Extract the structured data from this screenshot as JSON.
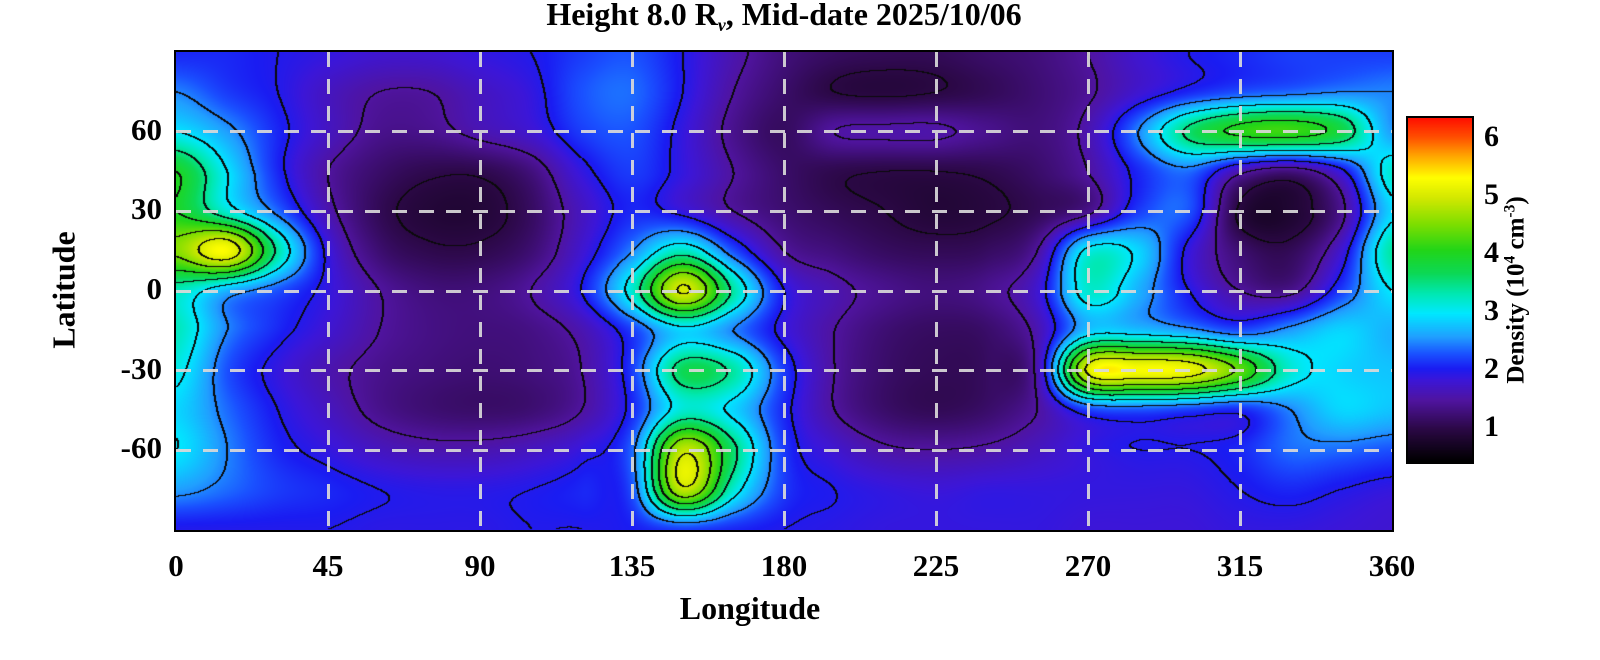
{
  "title": {
    "prefix": "Height 8.0 R",
    "subscript": "v",
    "suffix": ", Mid-date 2025/10/06"
  },
  "axes": {
    "x_label": "Longitude",
    "y_label": "Latitude",
    "x_ticks": [
      "0",
      "45",
      "90",
      "135",
      "180",
      "225",
      "270",
      "315",
      "360"
    ],
    "y_ticks": [
      "60",
      "30",
      "0",
      "-30",
      "-60"
    ]
  },
  "colorbar": {
    "ticks": [
      "6",
      "5",
      "4",
      "3",
      "2",
      "1"
    ],
    "tick_values": [
      6,
      5,
      4,
      3,
      2,
      1
    ],
    "title": {
      "prefix": "Density (10",
      "sup1": "4",
      "mid": " cm",
      "sup2": "-3",
      "suffix": ")"
    }
  },
  "chart_data": {
    "type": "heatmap",
    "title": "Height 8.0 Rv, Mid-date 2025/10/06",
    "xlabel": "Longitude",
    "ylabel": "Latitude",
    "xlim": [
      0,
      360
    ],
    "ylim": [
      -90,
      90
    ],
    "x_ticks": [
      0,
      45,
      90,
      135,
      180,
      225,
      270,
      315,
      360
    ],
    "y_ticks": [
      60,
      30,
      0,
      -30,
      -60
    ],
    "colorbar_label": "Density (10^4 cm^-3)",
    "colorbar_ticks": [
      1,
      2,
      3,
      4,
      5,
      6
    ],
    "value_range": [
      0.44,
      6.38
    ],
    "grid_lon": [
      0,
      15,
      30,
      45,
      60,
      75,
      90,
      105,
      120,
      135,
      150,
      165,
      180,
      195,
      210,
      225,
      240,
      255,
      270,
      285,
      300,
      315,
      330,
      345,
      360
    ],
    "grid_lat": [
      90,
      75,
      60,
      45,
      30,
      15,
      0,
      -15,
      -30,
      -45,
      -60,
      -75,
      -90
    ],
    "values": [
      [
        2.1,
        2.1,
        2.0,
        1.9,
        1.8,
        1.8,
        1.9,
        2.0,
        2.2,
        2.3,
        2.0,
        1.6,
        1.3,
        1.15,
        1.1,
        1.1,
        1.2,
        1.3,
        1.5,
        1.8,
        2.0,
        2.1,
        2.2,
        2.2,
        2.2
      ],
      [
        2.5,
        2.2,
        2.0,
        1.7,
        1.5,
        1.5,
        1.7,
        1.9,
        2.3,
        2.4,
        2.0,
        1.5,
        1.2,
        1.0,
        0.95,
        1.0,
        1.1,
        1.25,
        1.45,
        1.8,
        2.1,
        2.3,
        2.4,
        2.5,
        2.5
      ],
      [
        3.0,
        2.6,
        2.1,
        1.7,
        1.4,
        1.4,
        1.6,
        1.8,
        2.2,
        2.3,
        1.9,
        1.4,
        1.15,
        1.5,
        1.55,
        1.55,
        1.4,
        1.3,
        1.6,
        2.5,
        3.6,
        4.1,
        4.2,
        3.8,
        2.6
      ],
      [
        4.0,
        3.0,
        2.1,
        1.5,
        1.2,
        1.05,
        1.05,
        1.3,
        1.9,
        2.2,
        1.9,
        1.5,
        1.2,
        1.05,
        1.0,
        1.0,
        1.05,
        1.2,
        1.5,
        2.1,
        2.4,
        1.6,
        1.3,
        1.9,
        3.2
      ],
      [
        4.0,
        3.2,
        2.4,
        1.6,
        1.1,
        0.9,
        0.9,
        1.15,
        1.7,
        2.1,
        1.9,
        1.5,
        1.25,
        1.1,
        1.0,
        0.9,
        0.95,
        1.1,
        1.4,
        2.2,
        2.3,
        0.95,
        0.85,
        1.4,
        2.9
      ],
      [
        4.6,
        5.3,
        3.4,
        1.9,
        1.25,
        1.05,
        1.05,
        1.25,
        1.8,
        2.5,
        3.3,
        2.3,
        1.5,
        1.3,
        1.15,
        1.1,
        1.15,
        1.5,
        3.1,
        2.9,
        1.9,
        1.25,
        1.1,
        1.8,
        3.4
      ],
      [
        3.3,
        2.7,
        2.3,
        1.9,
        1.5,
        1.3,
        1.3,
        1.5,
        2.0,
        3.2,
        5.05,
        3.4,
        2.0,
        1.6,
        1.4,
        1.3,
        1.4,
        1.8,
        3.2,
        2.7,
        2.0,
        1.5,
        1.4,
        2.2,
        3.0
      ],
      [
        3.3,
        2.5,
        2.1,
        1.8,
        1.5,
        1.35,
        1.3,
        1.35,
        1.6,
        2.2,
        2.9,
        2.5,
        1.9,
        1.5,
        1.25,
        1.15,
        1.2,
        1.6,
        2.8,
        2.8,
        2.6,
        2.3,
        2.6,
        2.9,
        2.7
      ],
      [
        3.1,
        2.3,
        1.9,
        1.6,
        1.4,
        1.3,
        1.25,
        1.3,
        1.5,
        2.2,
        3.7,
        3.4,
        2.2,
        1.5,
        1.2,
        1.1,
        1.15,
        1.6,
        5.1,
        5.3,
        5.2,
        4.4,
        3.2,
        2.9,
        2.8
      ],
      [
        2.9,
        2.4,
        2.0,
        1.7,
        1.4,
        1.25,
        1.2,
        1.25,
        1.5,
        2.1,
        3.2,
        2.9,
        2.1,
        1.5,
        1.2,
        1.1,
        1.2,
        1.5,
        2.2,
        2.3,
        2.2,
        2.1,
        2.5,
        2.9,
        2.8
      ],
      [
        3.0,
        2.5,
        2.1,
        1.9,
        1.7,
        1.6,
        1.6,
        1.7,
        1.9,
        2.4,
        4.9,
        3.6,
        2.2,
        1.8,
        1.55,
        1.5,
        1.55,
        1.7,
        1.9,
        2.0,
        2.0,
        2.1,
        2.4,
        2.4,
        2.3
      ],
      [
        2.6,
        2.4,
        2.2,
        2.1,
        2.0,
        1.95,
        1.95,
        2.0,
        2.1,
        2.3,
        4.9,
        3.2,
        2.2,
        2.0,
        1.9,
        1.85,
        1.9,
        1.9,
        1.9,
        1.9,
        1.9,
        2.0,
        2.1,
        2.0,
        1.9
      ],
      [
        2.0,
        2.0,
        2.0,
        2.0,
        1.95,
        1.95,
        1.95,
        2.0,
        2.0,
        2.05,
        2.2,
        2.1,
        2.0,
        1.95,
        1.9,
        1.9,
        1.9,
        1.9,
        1.85,
        1.85,
        1.85,
        1.9,
        1.9,
        1.85,
        1.8
      ]
    ],
    "contour_levels": [
      1,
      1.5,
      2,
      2.5,
      3,
      3.5,
      4,
      4.5,
      5
    ],
    "contour_color": "#000000",
    "gridlines": {
      "lon": [
        45,
        90,
        135,
        180,
        225,
        270,
        315
      ],
      "lat": [
        60,
        30,
        0,
        -30,
        -60
      ],
      "style": "dashed",
      "color": "#d9d9d9"
    },
    "colormap_stops": [
      [
        0.44,
        "#000000"
      ],
      [
        1.0,
        "#2b0845"
      ],
      [
        1.5,
        "#5014a0"
      ],
      [
        1.85,
        "#3c16d8"
      ],
      [
        2.05,
        "#1a1cf2"
      ],
      [
        2.3,
        "#1a50ff"
      ],
      [
        2.6,
        "#20a0ff"
      ],
      [
        3.0,
        "#00e8ff"
      ],
      [
        3.35,
        "#00e8b0"
      ],
      [
        3.7,
        "#0cd855"
      ],
      [
        4.1,
        "#22d518"
      ],
      [
        4.55,
        "#7ede00"
      ],
      [
        5.0,
        "#d2e800"
      ],
      [
        5.35,
        "#ffff00"
      ],
      [
        5.75,
        "#ffa000"
      ],
      [
        6.05,
        "#ff5000"
      ],
      [
        6.38,
        "#ff1000"
      ]
    ]
  }
}
